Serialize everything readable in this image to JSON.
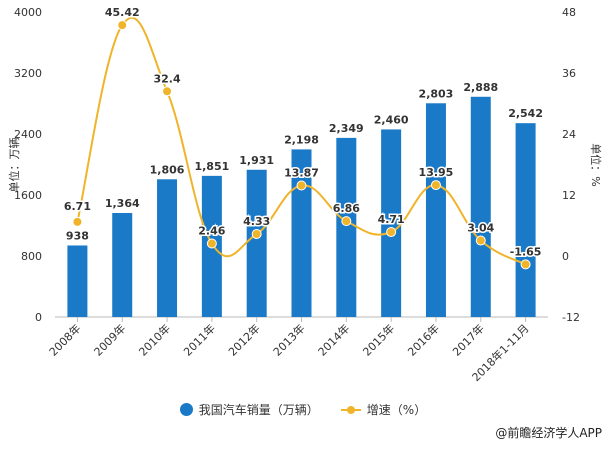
{
  "chart_data": {
    "type": "bar+line",
    "categories": [
      "2008年",
      "2009年",
      "2010年",
      "2011年",
      "2012年",
      "2013年",
      "2014年",
      "2015年",
      "2016年",
      "2017年",
      "2018年1-11月"
    ],
    "series": [
      {
        "name": "我国汽车销量（万辆）",
        "type": "bar",
        "axis": "left",
        "color": "#1a7ac8",
        "values": [
          938,
          1364,
          1806,
          1851,
          1931,
          2198,
          2349,
          2460,
          2803,
          2888,
          2542
        ],
        "labels": [
          "938",
          "1,364",
          "1,806",
          "1,851",
          "1,931",
          "2,198",
          "2,349",
          "2,460",
          "2,803",
          "2,888",
          "2,542"
        ]
      },
      {
        "name": "增速（%）",
        "type": "line",
        "axis": "right",
        "color": "#f0b42a",
        "values": [
          6.71,
          45.42,
          32.4,
          2.46,
          4.33,
          13.87,
          6.86,
          4.71,
          13.95,
          3.04,
          -1.65
        ],
        "labels": [
          "6.71",
          "45.42",
          "32.4",
          "2.46",
          "4.33",
          "13.87",
          "6.86",
          "4.71",
          "13.95",
          "3.04",
          "-1.65"
        ]
      }
    ],
    "ylabel": "单位：万辆",
    "ylabel_right": "单位：%",
    "ylim": [
      0,
      4000
    ],
    "ylim_right": [
      -12,
      48
    ],
    "yticks": [
      "0",
      "800",
      "1600",
      "2400",
      "3200",
      "4000"
    ],
    "yticks_right": [
      "-12",
      "0",
      "12",
      "24",
      "36",
      "48"
    ],
    "grid": false,
    "legend": "bottom"
  },
  "source": "@前瞻经济学人APP"
}
